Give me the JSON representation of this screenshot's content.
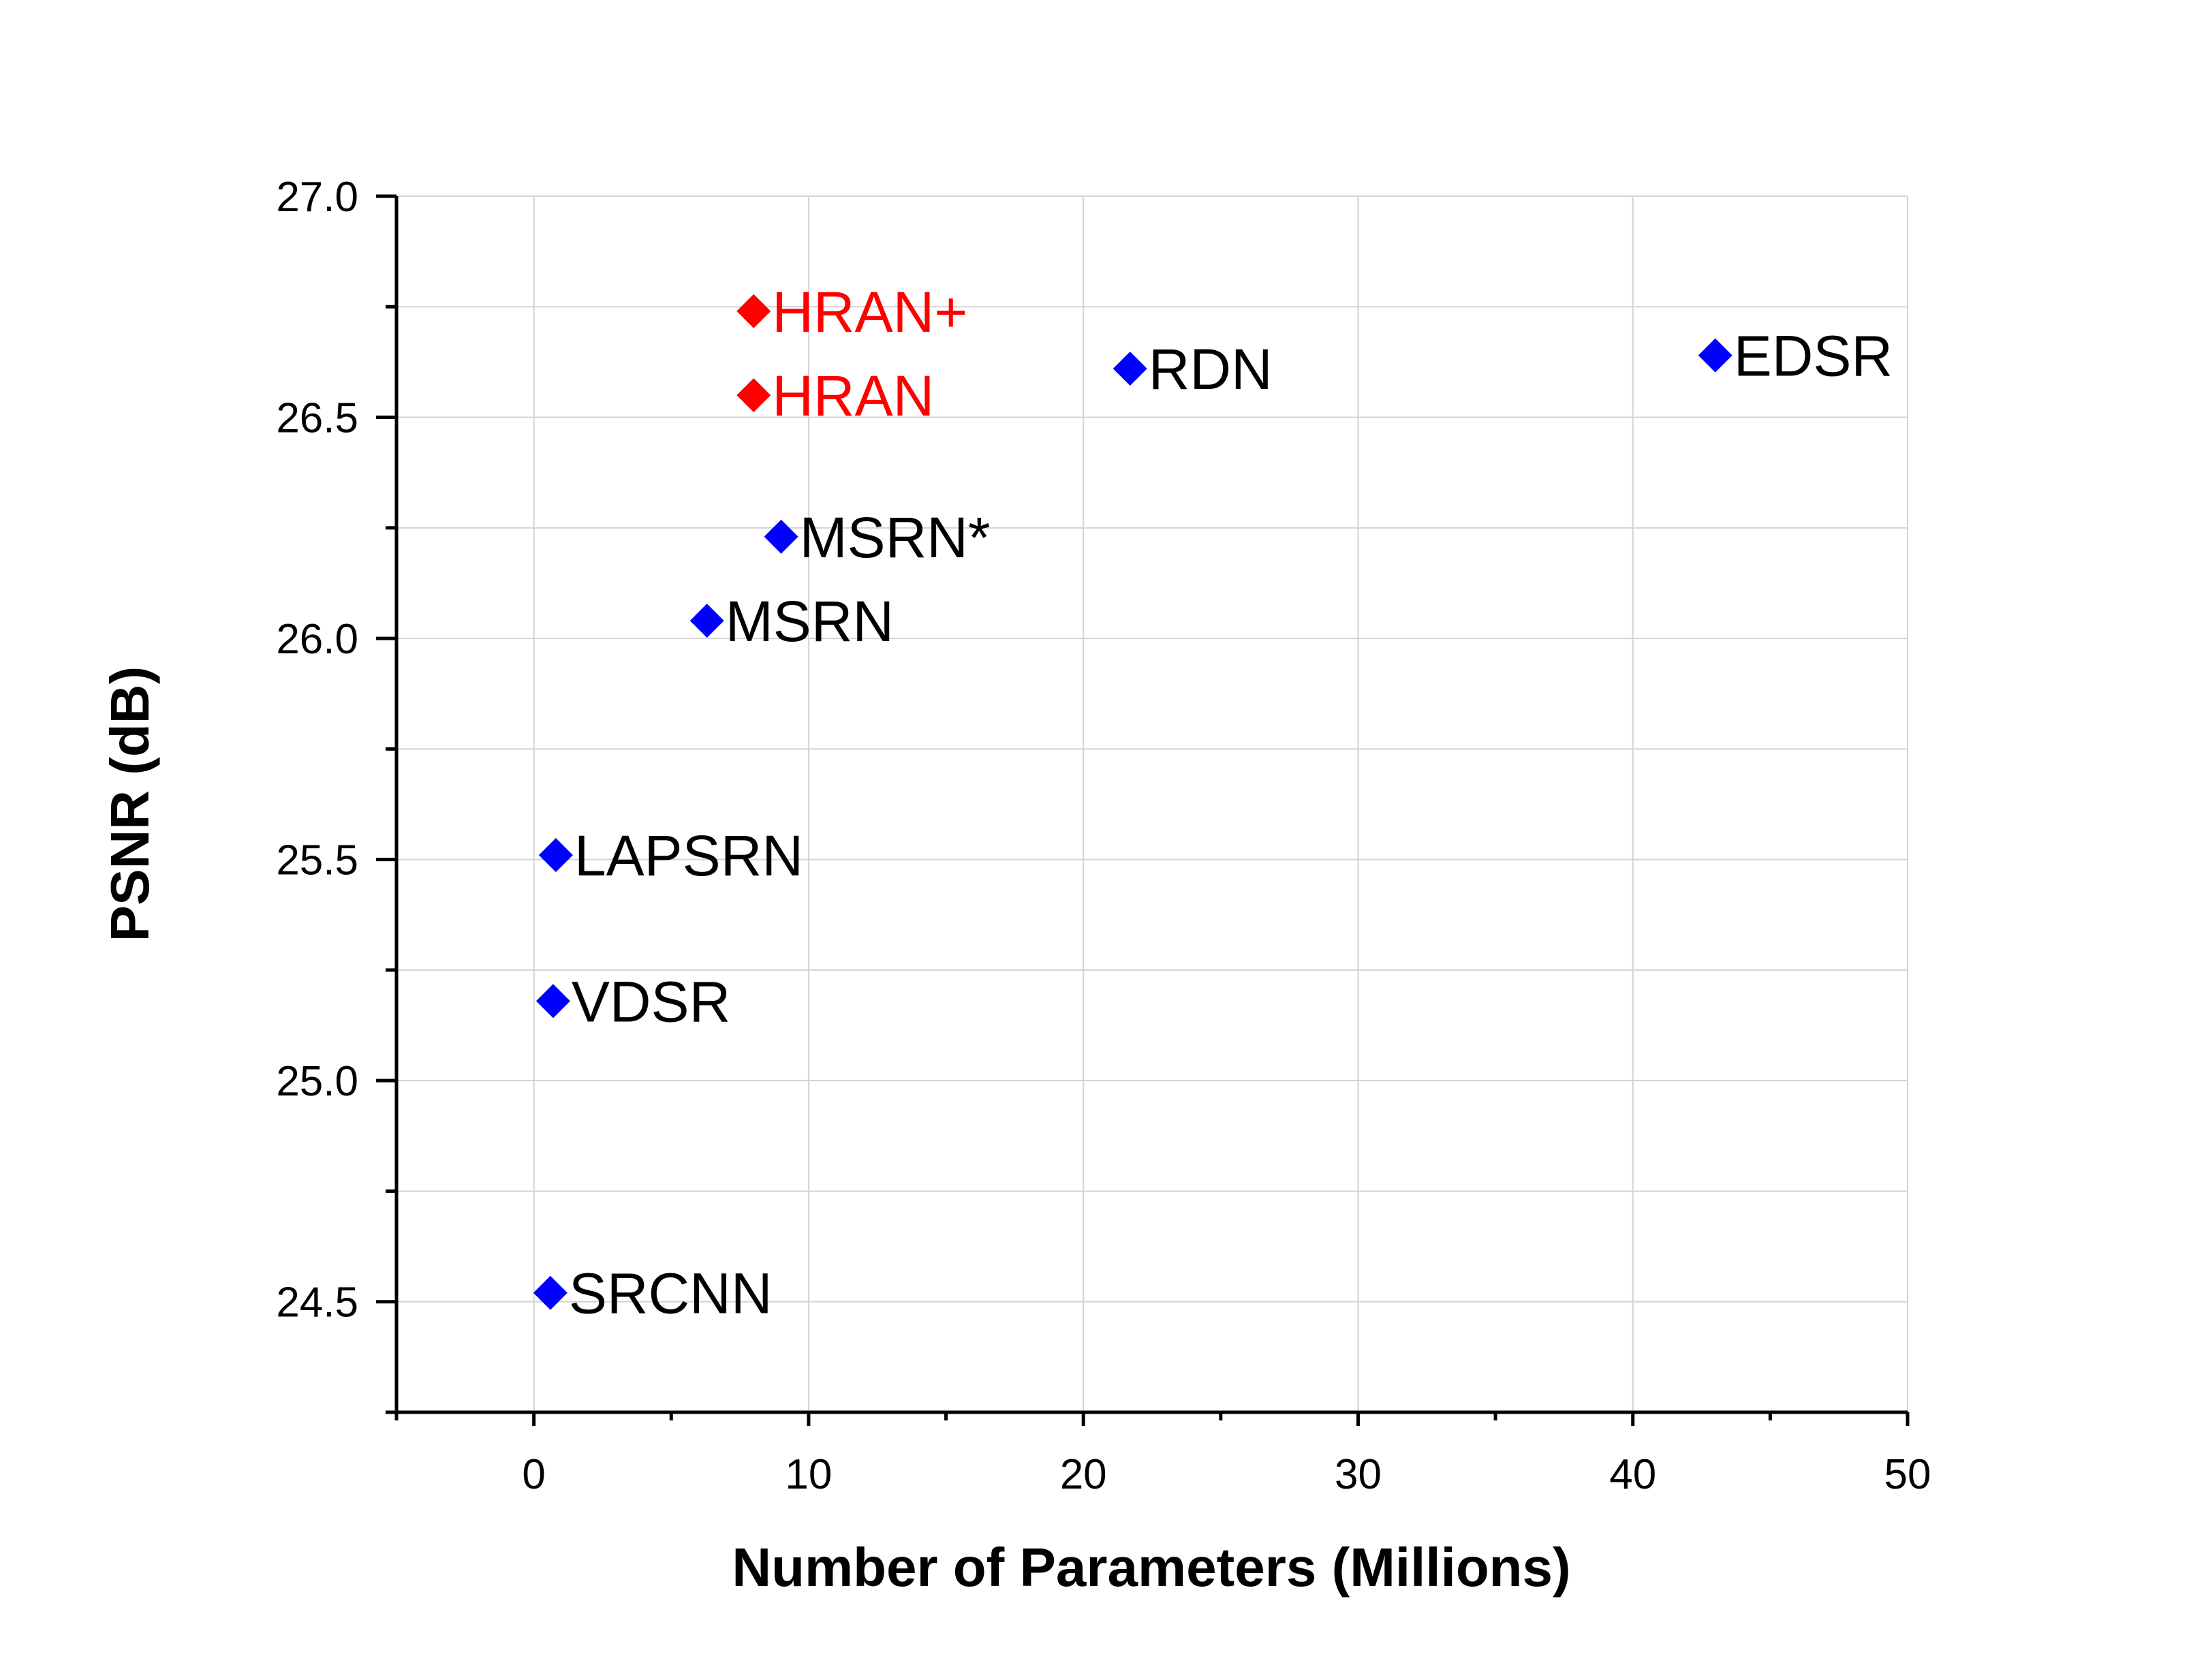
{
  "colors": {
    "highlight": "#ff0000",
    "baseline": "#0000ff",
    "label_default": "#000000",
    "grid": "#d3d3d3",
    "axis": "#000000"
  },
  "chart_data": {
    "type": "scatter",
    "title": "",
    "xlabel": "Number of Parameters (Millions)",
    "ylabel": "PSNR (dB)",
    "xlim": [
      -5,
      50
    ],
    "ylim": [
      24.25,
      27.0
    ],
    "x_major_ticks": [
      0,
      10,
      20,
      30,
      40,
      50
    ],
    "x_tick_labels": [
      "0",
      "10",
      "20",
      "30",
      "40",
      "50"
    ],
    "x_minor_ticks": [
      -5,
      5,
      15,
      25,
      35,
      45
    ],
    "y_major_ticks": [
      24.5,
      25.0,
      25.5,
      26.0,
      26.5,
      27.0
    ],
    "y_tick_labels": [
      "24.5",
      "25.0",
      "25.5",
      "26.0",
      "26.5",
      "27.0"
    ],
    "y_minor_ticks": [
      24.25,
      24.75,
      25.25,
      25.75,
      26.25,
      26.75
    ],
    "grid": true,
    "legend": "none",
    "marker": "diamond",
    "points": [
      {
        "label": "HRAN+",
        "x": 8.0,
        "y": 26.74,
        "group": "highlight"
      },
      {
        "label": "HRAN",
        "x": 8.0,
        "y": 26.55,
        "group": "highlight"
      },
      {
        "label": "RDN",
        "x": 21.7,
        "y": 26.61,
        "group": "baseline"
      },
      {
        "label": "EDSR",
        "x": 43.0,
        "y": 26.64,
        "group": "baseline"
      },
      {
        "label": "MSRN*",
        "x": 9.0,
        "y": 26.23,
        "group": "baseline"
      },
      {
        "label": "MSRN",
        "x": 6.3,
        "y": 26.04,
        "group": "baseline"
      },
      {
        "label": "LAPSRN",
        "x": 0.8,
        "y": 25.51,
        "group": "baseline"
      },
      {
        "label": "VDSR",
        "x": 0.7,
        "y": 25.18,
        "group": "baseline"
      },
      {
        "label": "SRCNN",
        "x": 0.6,
        "y": 24.52,
        "group": "baseline"
      }
    ]
  }
}
